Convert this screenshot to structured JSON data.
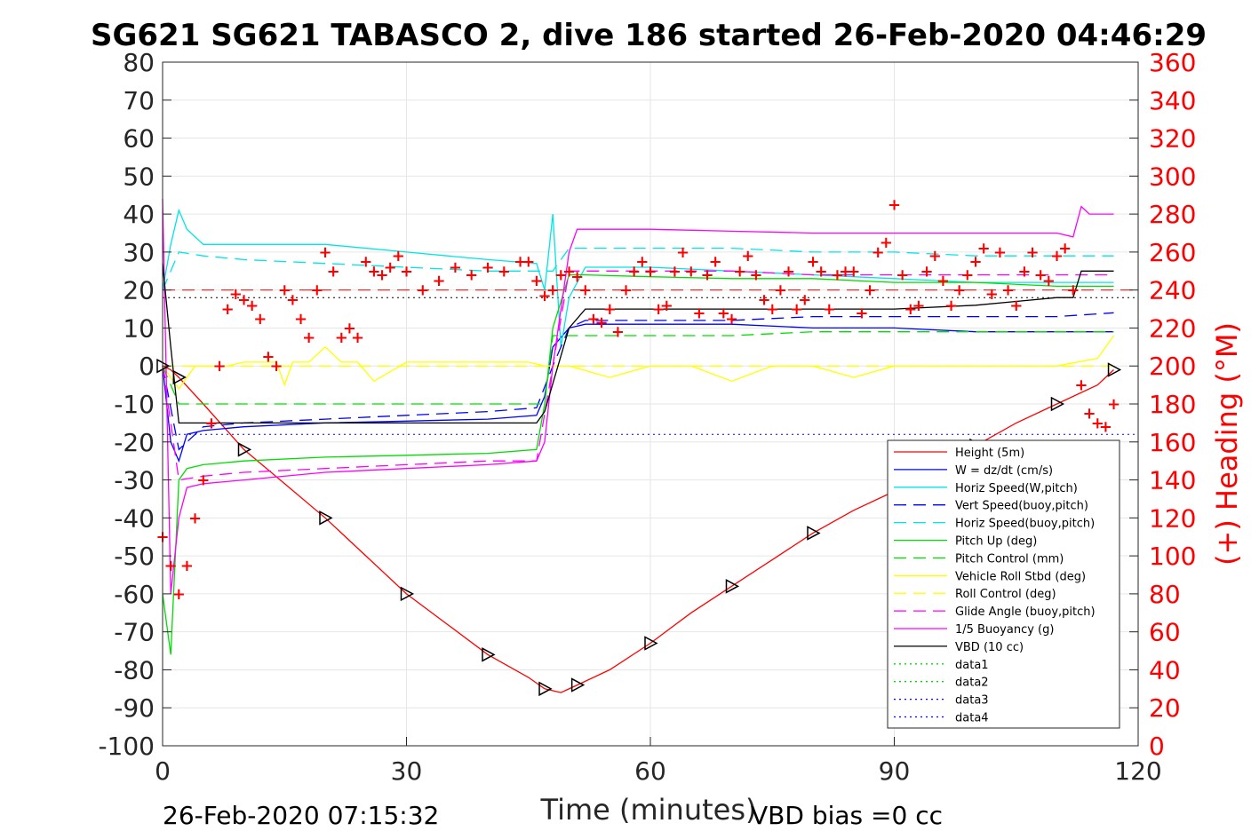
{
  "chart_data": {
    "type": "line",
    "title": "SG621 SG621 TABASCO 2, dive 186 started 26-Feb-2020 04:46:29",
    "xlabel": "Time (minutes)",
    "ylabel_right": "(+) Heading (°M)",
    "xlim": [
      0,
      120
    ],
    "ylim": [
      -100,
      80
    ],
    "ylim_right": [
      0,
      360
    ],
    "x_ticks": [
      "0",
      "30",
      "60",
      "90",
      "120"
    ],
    "y_ticks": [
      "80",
      "70",
      "60",
      "50",
      "40",
      "30",
      "20",
      "10",
      "0",
      "-10",
      "-20",
      "-30",
      "-40",
      "-50",
      "-60",
      "-70",
      "-80",
      "-90",
      "-100"
    ],
    "y_ticks_right": [
      "360",
      "340",
      "320",
      "300",
      "280",
      "260",
      "240",
      "220",
      "200",
      "180",
      "160",
      "140",
      "120",
      "100",
      "80",
      "60",
      "40",
      "20",
      "0"
    ],
    "grid": true,
    "legend_position": "lower-right",
    "footer_left": "26-Feb-2020 07:15:32",
    "footer_right": "VBD bias =0 cc",
    "colors": {
      "heading": "#ff0000",
      "right_axis": "#ff0000",
      "grid": "#e6e6e6"
    },
    "series": [
      {
        "name": "Height (5m)",
        "color": "#ff0000",
        "style": "solid",
        "x": [
          0,
          1,
          2,
          5,
          10,
          15,
          20,
          25,
          30,
          35,
          40,
          45,
          47,
          49,
          51,
          55,
          60,
          65,
          70,
          75,
          80,
          85,
          90,
          95,
          100,
          105,
          110,
          115,
          117
        ],
        "y": [
          0,
          -1,
          -3,
          -10,
          -22,
          -31,
          -40,
          -50,
          -60,
          -68,
          -76,
          -82,
          -85,
          -86,
          -84,
          -80,
          -73,
          -65,
          -58,
          -51,
          -44,
          -38,
          -33,
          -27,
          -21,
          -15,
          -10,
          -5,
          -1
        ]
      },
      {
        "name": "W = dz/dt (cm/s)",
        "color": "#0000ff",
        "style": "solid",
        "x": [
          0,
          1,
          2,
          3,
          5,
          10,
          20,
          30,
          40,
          46,
          47,
          48,
          50,
          52,
          60,
          70,
          80,
          90,
          100,
          110,
          117
        ],
        "y": [
          0,
          -20,
          -25,
          -18,
          -17,
          -16,
          -15,
          -14.5,
          -14,
          -13,
          -8,
          5,
          10,
          11,
          11,
          11,
          10,
          10,
          9,
          9,
          9
        ]
      },
      {
        "name": "Horiz Speed(W,pitch)",
        "color": "#00e5e5",
        "style": "solid",
        "x": [
          0,
          1,
          2,
          3,
          5,
          10,
          20,
          30,
          40,
          46,
          47,
          48,
          49,
          50,
          52,
          60,
          70,
          80,
          90,
          100,
          110,
          117
        ],
        "y": [
          20,
          32,
          41,
          36,
          32,
          32,
          32,
          30,
          28,
          27,
          20,
          40,
          5,
          18,
          26,
          26,
          25,
          24,
          23,
          22,
          22,
          22
        ]
      },
      {
        "name": "Vert Speed(buoy,pitch)",
        "color": "#0000ff",
        "style": "dashed",
        "x": [
          0,
          2,
          5,
          10,
          20,
          30,
          40,
          46,
          48,
          50,
          52,
          60,
          70,
          80,
          90,
          100,
          110,
          117
        ],
        "y": [
          0,
          -22,
          -16,
          -15,
          -14,
          -13,
          -12,
          -11,
          0,
          10,
          12,
          12,
          12,
          13,
          13,
          13,
          13,
          14
        ]
      },
      {
        "name": "Horiz Speed(buoy,pitch)",
        "color": "#00e5e5",
        "style": "dashed",
        "x": [
          0,
          2,
          5,
          10,
          20,
          30,
          40,
          46,
          48,
          50,
          52,
          60,
          70,
          80,
          90,
          100,
          110,
          117
        ],
        "y": [
          20,
          30,
          29,
          28,
          27,
          26,
          25,
          25,
          25,
          31,
          31,
          31,
          31,
          30,
          30,
          29,
          29,
          29
        ]
      },
      {
        "name": "Pitch Up (deg)",
        "color": "#00dd00",
        "style": "solid",
        "x": [
          0,
          1,
          2,
          3,
          5,
          10,
          20,
          30,
          40,
          46,
          47,
          48,
          50,
          52,
          60,
          70,
          80,
          90,
          100,
          110,
          117
        ],
        "y": [
          -60,
          -76,
          -30,
          -27,
          -26,
          -25,
          -24,
          -23.5,
          -23,
          -22,
          -10,
          10,
          24,
          24,
          23.5,
          23,
          23,
          22,
          22,
          21,
          21
        ]
      },
      {
        "name": "Pitch Control (mm)",
        "color": "#00dd00",
        "style": "dashed",
        "x": [
          0,
          2,
          5,
          10,
          20,
          30,
          40,
          46,
          47,
          48,
          50,
          52,
          60,
          70,
          80,
          90,
          100,
          110,
          117
        ],
        "y": [
          0,
          -10,
          -10,
          -10,
          -10,
          -10,
          -10,
          -10,
          -10,
          8,
          8,
          8,
          8,
          8,
          9,
          9,
          9,
          9,
          9
        ]
      },
      {
        "name": "Vehicle Roll Stbd (deg)",
        "color": "#ffff00",
        "style": "solid",
        "x": [
          0,
          2,
          4,
          6,
          8,
          10,
          14,
          15,
          16,
          18,
          20,
          22,
          24,
          26,
          30,
          35,
          40,
          45,
          47,
          50,
          55,
          60,
          65,
          70,
          75,
          80,
          85,
          90,
          95,
          100,
          105,
          110,
          115,
          117
        ],
        "y": [
          0,
          -6,
          0,
          0,
          0,
          1,
          1,
          -5,
          1,
          1,
          5,
          1,
          1,
          -4,
          1,
          1,
          1,
          1,
          0,
          0,
          -3,
          0,
          0,
          -4,
          0,
          0,
          -3,
          0,
          0,
          0,
          0,
          0,
          2,
          8
        ]
      },
      {
        "name": "Roll Control (deg)",
        "color": "#ffff00",
        "style": "dashed",
        "x": [
          0,
          5,
          10,
          20,
          30,
          40,
          47,
          50,
          60,
          70,
          80,
          90,
          100,
          110,
          117
        ],
        "y": [
          0,
          0,
          0,
          0,
          0,
          0,
          0,
          0,
          0,
          0,
          0,
          0,
          0,
          0,
          0
        ]
      },
      {
        "name": "Glide Angle (buoy,pitch)",
        "color": "#ff00ff",
        "style": "dashed",
        "x": [
          0,
          2,
          5,
          10,
          20,
          30,
          40,
          46,
          48,
          50,
          52,
          60,
          70,
          80,
          90,
          100,
          110,
          117
        ],
        "y": [
          0,
          -30,
          -29,
          -28,
          -27,
          -26,
          -25,
          -25,
          0,
          25,
          25,
          25,
          25,
          24,
          24,
          24,
          24,
          24
        ]
      },
      {
        "name": "1/5 Buoyancy (g)",
        "color": "#ff00ff",
        "style": "solid",
        "x": [
          0,
          1,
          2,
          3,
          5,
          10,
          20,
          30,
          40,
          46,
          47,
          48,
          50,
          51,
          60,
          70,
          80,
          90,
          100,
          110,
          112,
          113,
          114,
          117
        ],
        "y": [
          44,
          -60,
          -40,
          -32,
          -31,
          -30,
          -28,
          -27,
          -26,
          -25,
          -20,
          0,
          30,
          36,
          36,
          35.5,
          35,
          35,
          35,
          35,
          34,
          42,
          40,
          40
        ]
      },
      {
        "name": "VBD (10 cc)",
        "color": "#000000",
        "style": "solid",
        "x": [
          0,
          1,
          2,
          5,
          10,
          20,
          30,
          40,
          46,
          47,
          50,
          52,
          60,
          70,
          80,
          90,
          100,
          105,
          110,
          112,
          113,
          117
        ],
        "y": [
          27,
          5,
          -15,
          -15,
          -15,
          -15,
          -15,
          -15,
          -15,
          -12,
          10,
          15,
          15,
          15,
          15,
          15,
          16,
          17,
          18,
          18,
          25,
          25
        ]
      },
      {
        "name": "data1",
        "color": "#00dd00",
        "style": "dotted",
        "x": [],
        "y": []
      },
      {
        "name": "data2",
        "color": "#00dd00",
        "style": "dotted",
        "x": [],
        "y": []
      },
      {
        "name": "data3",
        "color": "#0000ff",
        "style": "dotted",
        "x": [],
        "y": []
      },
      {
        "name": "data4",
        "color": "#0000ff",
        "style": "dotted",
        "x": [],
        "y": []
      }
    ],
    "reference_lines": [
      {
        "color": "#ff0000",
        "style": "dashed",
        "y": 20
      },
      {
        "color": "#000000",
        "style": "dotted",
        "y": 18
      },
      {
        "color": "#0000ff",
        "style": "dotted",
        "y": -18
      }
    ],
    "heading": {
      "name": "(+) Heading (°M)",
      "axis": "right",
      "marker": "+",
      "color": "#ff0000",
      "x": [
        0,
        1,
        2,
        3,
        4,
        5,
        6,
        7,
        8,
        9,
        10,
        11,
        12,
        13,
        14,
        15,
        16,
        17,
        18,
        19,
        20,
        21,
        22,
        23,
        24,
        25,
        26,
        27,
        28,
        29,
        30,
        32,
        34,
        36,
        38,
        40,
        42,
        44,
        45,
        46,
        47,
        48,
        49,
        50,
        51,
        52,
        53,
        54,
        55,
        56,
        57,
        58,
        59,
        60,
        61,
        62,
        63,
        64,
        65,
        66,
        67,
        68,
        69,
        70,
        71,
        72,
        73,
        74,
        75,
        76,
        77,
        78,
        79,
        80,
        81,
        82,
        83,
        84,
        85,
        86,
        87,
        88,
        89,
        90,
        91,
        92,
        93,
        94,
        95,
        96,
        97,
        98,
        99,
        100,
        101,
        102,
        103,
        104,
        105,
        106,
        107,
        108,
        109,
        110,
        111,
        112,
        113,
        114,
        115,
        116,
        117
      ],
      "y": [
        110,
        95,
        80,
        95,
        120,
        140,
        170,
        200,
        230,
        238,
        235,
        232,
        225,
        205,
        200,
        240,
        235,
        225,
        215,
        240,
        260,
        250,
        215,
        220,
        215,
        255,
        250,
        248,
        252,
        258,
        250,
        240,
        245,
        252,
        248,
        252,
        250,
        255,
        255,
        245,
        237,
        240,
        248,
        250,
        247,
        240,
        225,
        223,
        230,
        218,
        240,
        250,
        255,
        250,
        230,
        232,
        250,
        260,
        250,
        228,
        248,
        255,
        228,
        225,
        250,
        258,
        248,
        235,
        230,
        240,
        250,
        230,
        235,
        255,
        250,
        230,
        248,
        250,
        250,
        228,
        240,
        260,
        265,
        285,
        248,
        230,
        232,
        250,
        258,
        245,
        232,
        240,
        248,
        255,
        262,
        238,
        260,
        240,
        232,
        250,
        260,
        248,
        245,
        258,
        262,
        240,
        190,
        175,
        170,
        168,
        180
      ]
    }
  }
}
